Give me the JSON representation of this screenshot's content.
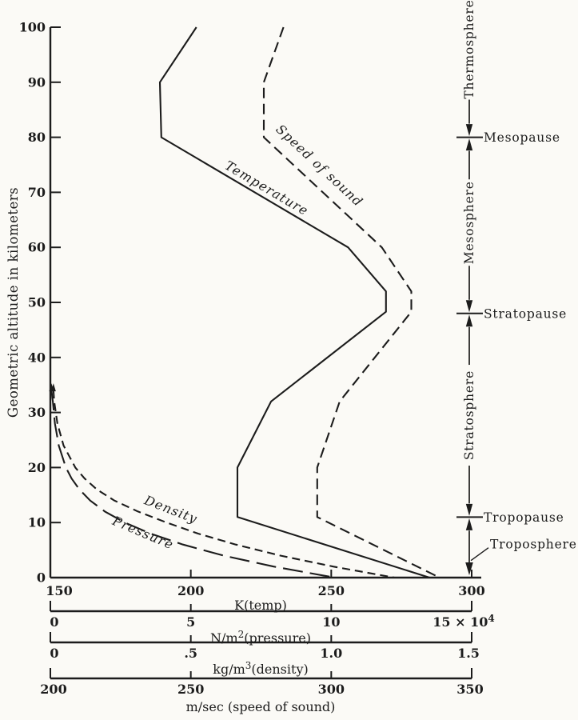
{
  "figure": {
    "background": "#fbfaf6",
    "ink": "#1c1c1c",
    "ylabel": "Geometric altitude in kilometers"
  },
  "chart_data": {
    "type": "line",
    "title": "",
    "ylabel": "Geometric altitude in kilometers",
    "y_axis": {
      "min": 0,
      "max": 100,
      "ticks": [
        0,
        10,
        20,
        30,
        40,
        50,
        60,
        70,
        80,
        90,
        100
      ]
    },
    "x_axes": [
      {
        "id": "temp",
        "title": "K(temp)",
        "tick_labels": [
          "150",
          "200",
          "250",
          "300"
        ],
        "domain": [
          150,
          300
        ]
      },
      {
        "id": "pressure",
        "title": "N/m^{2}(pressure)",
        "tick_labels": [
          "0",
          "5",
          "10",
          "15 × 10^{4}"
        ],
        "domain": [
          0,
          15
        ]
      },
      {
        "id": "density",
        "title": "kg/m^{3}(density)",
        "tick_labels": [
          "0",
          ".5",
          "1.0",
          "1.5"
        ],
        "domain": [
          0,
          1.5
        ]
      },
      {
        "id": "speed",
        "title": "m/sec (speed of sound)",
        "tick_labels": [
          "200",
          "250",
          "300",
          "350"
        ],
        "domain": [
          200,
          350
        ]
      }
    ],
    "series": [
      {
        "name": "Temperature",
        "axis": "temp",
        "style": "solid",
        "points": [
          [
            202,
            100
          ],
          [
            189,
            90
          ],
          [
            189.5,
            80
          ],
          [
            256,
            60
          ],
          [
            269.5,
            52
          ],
          [
            269.5,
            48.3
          ],
          [
            228.6,
            32
          ],
          [
            216.6,
            20
          ],
          [
            216.6,
            11
          ],
          [
            285,
            0
          ]
        ]
      },
      {
        "name": "Speed of sound",
        "axis": "speed",
        "style": "dash",
        "points": [
          [
            283,
            100
          ],
          [
            276,
            90
          ],
          [
            276,
            80
          ],
          [
            318,
            60
          ],
          [
            328.5,
            52
          ],
          [
            328.5,
            48.3
          ],
          [
            303,
            32
          ],
          [
            295,
            20
          ],
          [
            295,
            11
          ],
          [
            338.6,
            0
          ]
        ]
      },
      {
        "name": "Density",
        "axis": "density",
        "style": "dash-medium",
        "points": [
          [
            0.011,
            34
          ],
          [
            0.0136,
            32
          ],
          [
            0.0251,
            28
          ],
          [
            0.0469,
            24
          ],
          [
            0.0889,
            20
          ],
          [
            0.122,
            18
          ],
          [
            0.166,
            16
          ],
          [
            0.228,
            14
          ],
          [
            0.312,
            12
          ],
          [
            0.414,
            10
          ],
          [
            0.526,
            8
          ],
          [
            0.66,
            6
          ],
          [
            0.819,
            4
          ],
          [
            1.007,
            2
          ],
          [
            1.225,
            0
          ]
        ]
      },
      {
        "name": "Pressure",
        "axis": "pressure",
        "style": "dash-long",
        "points": [
          [
            0.04,
            34
          ],
          [
            0.089,
            32
          ],
          [
            0.163,
            28
          ],
          [
            0.298,
            24
          ],
          [
            0.553,
            20
          ],
          [
            0.757,
            18
          ],
          [
            1.035,
            16
          ],
          [
            1.417,
            14
          ],
          [
            1.94,
            12
          ],
          [
            2.65,
            10
          ],
          [
            3.565,
            8
          ],
          [
            4.722,
            6
          ],
          [
            6.166,
            4
          ],
          [
            7.95,
            2
          ],
          [
            10.13,
            0
          ]
        ]
      }
    ],
    "regions": [
      {
        "name": "Thermosphere",
        "kind": "region",
        "orientation": "vertical",
        "center_alt": 96
      },
      {
        "name": "Mesopause",
        "kind": "boundary",
        "alt": 80
      },
      {
        "name": "Mesosphere",
        "kind": "region",
        "orientation": "vertical",
        "center_alt": 64.5
      },
      {
        "name": "Stratopause",
        "kind": "boundary",
        "alt": 48
      },
      {
        "name": "Stratosphere",
        "kind": "region",
        "orientation": "vertical",
        "center_alt": 29.5
      },
      {
        "name": "Tropopause",
        "kind": "boundary",
        "alt": 11
      },
      {
        "name": "Troposphere",
        "kind": "region",
        "orientation": "horizontal",
        "center_alt": 6
      }
    ]
  }
}
